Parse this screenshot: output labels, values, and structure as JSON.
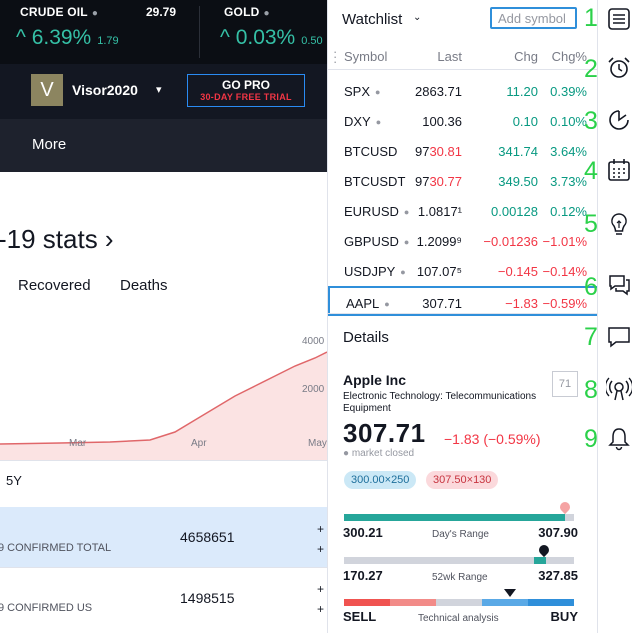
{
  "tickers": [
    {
      "name": "CRUDE OIL",
      "price": "29.79",
      "pct": "^ 6.39%",
      "change": "1.79"
    },
    {
      "name": "GOLD",
      "price": "",
      "pct": "^ 0.03%",
      "change": "0.50"
    }
  ],
  "user": {
    "avatar_letter": "V",
    "name": "Visor2020",
    "caret": "▾"
  },
  "gopro": {
    "line1": "GO PRO",
    "line2": "30-DAY FREE TRIAL"
  },
  "nav": {
    "more": "More"
  },
  "stats": {
    "title": "-19 stats ›",
    "tabs": [
      "Recovered",
      "Deaths"
    ],
    "chart_y_ticks": [
      "4000",
      "2000"
    ],
    "chart_x_ticks": [
      "Mar",
      "Apr",
      "May"
    ],
    "range_button": "5Y",
    "rows": [
      {
        "label": "9 CONFIRMED TOTAL",
        "value": "4658651",
        "plus": "+"
      },
      {
        "label": "9 CONFIRMED US",
        "value": "1498515",
        "plus": "+"
      }
    ]
  },
  "watchlist": {
    "title": "Watchlist",
    "caret": "⌄",
    "add_placeholder": "Add symbol",
    "columns": {
      "symbol": "Symbol",
      "last": "Last",
      "chg": "Chg",
      "chgp": "Chg%"
    },
    "rows": [
      {
        "symbol": "SPX",
        "dot": true,
        "last": "2863.71",
        "last_red": "",
        "chg": "11.20",
        "chgp": "0.39%",
        "dir": "up"
      },
      {
        "symbol": "DXY",
        "dot": true,
        "last": "100.36",
        "last_red": "",
        "chg": "0.10",
        "chgp": "0.10%",
        "dir": "up"
      },
      {
        "symbol": "BTCUSD",
        "dot": false,
        "last": "97",
        "last_red": "30.81",
        "chg": "341.74",
        "chgp": "3.64%",
        "dir": "up"
      },
      {
        "symbol": "BTCUSDT",
        "dot": false,
        "last": "97",
        "last_red": "30.77",
        "chg": "349.50",
        "chgp": "3.73%",
        "dir": "up"
      },
      {
        "symbol": "EURUSD",
        "dot": true,
        "last": "1.0817¹",
        "last_red": "",
        "chg": "0.00128",
        "chgp": "0.12%",
        "dir": "up"
      },
      {
        "symbol": "GBPUSD",
        "dot": true,
        "last": "1.2099⁹",
        "last_red": "",
        "chg": "−0.01236",
        "chgp": "−1.01%",
        "dir": "dn"
      },
      {
        "symbol": "USDJPY",
        "dot": true,
        "last": "107.07⁵",
        "last_red": "",
        "chg": "−0.145",
        "chgp": "−0.14%",
        "dir": "dn"
      },
      {
        "symbol": "AAPL",
        "dot": true,
        "last": "307.71",
        "last_red": "",
        "chg": "−1.83",
        "chgp": "−0.59%",
        "dir": "dn"
      }
    ]
  },
  "details": {
    "title": "Details",
    "company": "Apple Inc",
    "sector": "Electronic Technology: Telecommunications Equipment",
    "rank": "71",
    "price": "307.71",
    "change": "−1.83 (−0.59%)",
    "market_status": "market closed",
    "bid": "300.00×250",
    "ask": "307.50×130",
    "days_range": {
      "low": "300.21",
      "high": "307.90",
      "label": "Day's Range",
      "position": 0.96
    },
    "week52_range": {
      "low": "170.27",
      "high": "327.85",
      "label": "52wk Range",
      "position": 0.87
    },
    "ta": {
      "sell": "SELL",
      "buy": "BUY",
      "label": "Technical analysis",
      "position": 0.72
    }
  },
  "rail_numbers": [
    "1",
    "2",
    "3",
    "4",
    "5",
    "6",
    "7",
    "8",
    "9"
  ],
  "colors": {
    "up": "#089981",
    "down": "#f23645",
    "accent": "#2f8fda",
    "annotation_green": "#2bd14a"
  }
}
